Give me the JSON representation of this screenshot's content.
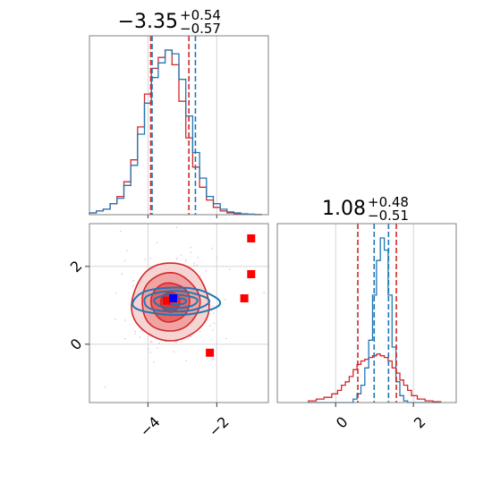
{
  "colors": {
    "red": "#d62728",
    "blue": "#1f77b4",
    "marker_red": "#ff0000",
    "marker_blue": "#0000ff",
    "grid": "#d0d0d0",
    "scatter": "#e6b8cf"
  },
  "chart_data": [
    {
      "type": "histogram",
      "panel": "top-left marginal of parameter 1",
      "title": {
        "median": "−3.35",
        "plus": "+0.54",
        "minus": "−0.57"
      },
      "xlim": [
        -5.7,
        -0.5
      ],
      "grid": true,
      "bins_x": [
        -5.6,
        -5.4,
        -5.2,
        -5.0,
        -4.8,
        -4.6,
        -4.4,
        -4.2,
        -4.0,
        -3.8,
        -3.6,
        -3.4,
        -3.2,
        -3.0,
        -2.8,
        -2.6,
        -2.4,
        -2.2,
        -2.0,
        -1.8,
        -1.6,
        -1.4,
        -1.2,
        -1.0,
        -0.8
      ],
      "series": [
        {
          "color": "red",
          "values": [
            0.01,
            0.02,
            0.03,
            0.06,
            0.1,
            0.18,
            0.3,
            0.48,
            0.66,
            0.8,
            0.86,
            0.9,
            0.82,
            0.62,
            0.42,
            0.26,
            0.15,
            0.08,
            0.04,
            0.02,
            0.01,
            0.005,
            0.002,
            0.001,
            0.0
          ]
        },
        {
          "color": "blue",
          "values": [
            0.01,
            0.02,
            0.03,
            0.06,
            0.09,
            0.16,
            0.27,
            0.44,
            0.61,
            0.75,
            0.83,
            0.9,
            0.88,
            0.74,
            0.54,
            0.34,
            0.2,
            0.1,
            0.06,
            0.03,
            0.015,
            0.01,
            0.005,
            0.003,
            0.001
          ]
        }
      ],
      "quantile_lines": [
        {
          "color": "red",
          "x": [
            -3.92,
            -2.81
          ]
        },
        {
          "color": "blue",
          "x": [
            -3.88,
            -2.62
          ]
        }
      ]
    },
    {
      "type": "contour-scatter",
      "panel": "bottom-left joint distribution",
      "xlim": [
        -5.7,
        -0.5
      ],
      "ylim": [
        -1.5,
        3.1
      ],
      "xticks": [
        -4,
        -2
      ],
      "yticks": [
        0,
        2
      ],
      "grid": true,
      "series": [
        {
          "color": "red",
          "center": [
            -3.35,
            1.08
          ],
          "sigma": [
            0.56,
            0.5
          ],
          "levels": [
            0.5,
            1.0,
            1.5,
            2.0
          ],
          "filled": true
        },
        {
          "color": "blue",
          "center": [
            -3.2,
            1.1
          ],
          "sigma": [
            0.63,
            0.16
          ],
          "levels": [
            0.5,
            1.0,
            1.5,
            2.0
          ],
          "filled": false
        }
      ],
      "markers": [
        {
          "color": "marker_red",
          "x": -1.0,
          "y": 2.72
        },
        {
          "color": "marker_red",
          "x": -1.0,
          "y": 1.8
        },
        {
          "color": "marker_red",
          "x": -1.2,
          "y": 1.18
        },
        {
          "color": "marker_red",
          "x": -2.2,
          "y": -0.22
        },
        {
          "color": "marker_red",
          "x": -3.45,
          "y": 1.12
        },
        {
          "color": "marker_blue",
          "x": -3.27,
          "y": 1.18
        }
      ]
    },
    {
      "type": "histogram",
      "panel": "bottom-right marginal of parameter 2",
      "title": {
        "median": "1.08",
        "plus": "+0.48",
        "minus": "−0.51"
      },
      "xlim": [
        -1.5,
        3.1
      ],
      "xticks": [
        0,
        2
      ],
      "grid": true,
      "bins_x": [
        -0.6,
        -0.4,
        -0.2,
        0.0,
        0.1,
        0.2,
        0.3,
        0.4,
        0.5,
        0.6,
        0.7,
        0.8,
        0.9,
        1.0,
        1.1,
        1.2,
        1.3,
        1.4,
        1.5,
        1.6,
        1.7,
        1.8,
        1.9,
        2.0,
        2.2,
        2.4,
        2.6
      ],
      "series": [
        {
          "color": "red",
          "values": [
            0.01,
            0.02,
            0.03,
            0.05,
            0.07,
            0.1,
            0.12,
            0.15,
            0.19,
            0.22,
            0.24,
            0.25,
            0.26,
            0.27,
            0.28,
            0.27,
            0.26,
            0.24,
            0.2,
            0.17,
            0.13,
            0.1,
            0.07,
            0.04,
            0.02,
            0.01,
            0.005
          ]
        },
        {
          "color": "blue",
          "values": [
            0,
            0,
            0,
            0,
            0,
            0,
            0,
            0,
            0.02,
            0.05,
            0.1,
            0.2,
            0.36,
            0.62,
            0.82,
            0.95,
            0.88,
            0.62,
            0.32,
            0.12,
            0.04,
            0.01,
            0,
            0,
            0,
            0,
            0
          ]
        }
      ],
      "quantile_lines": [
        {
          "color": "red",
          "x": [
            0.57,
            1.56
          ]
        },
        {
          "color": "blue",
          "x": [
            0.99,
            1.36
          ]
        }
      ]
    }
  ]
}
